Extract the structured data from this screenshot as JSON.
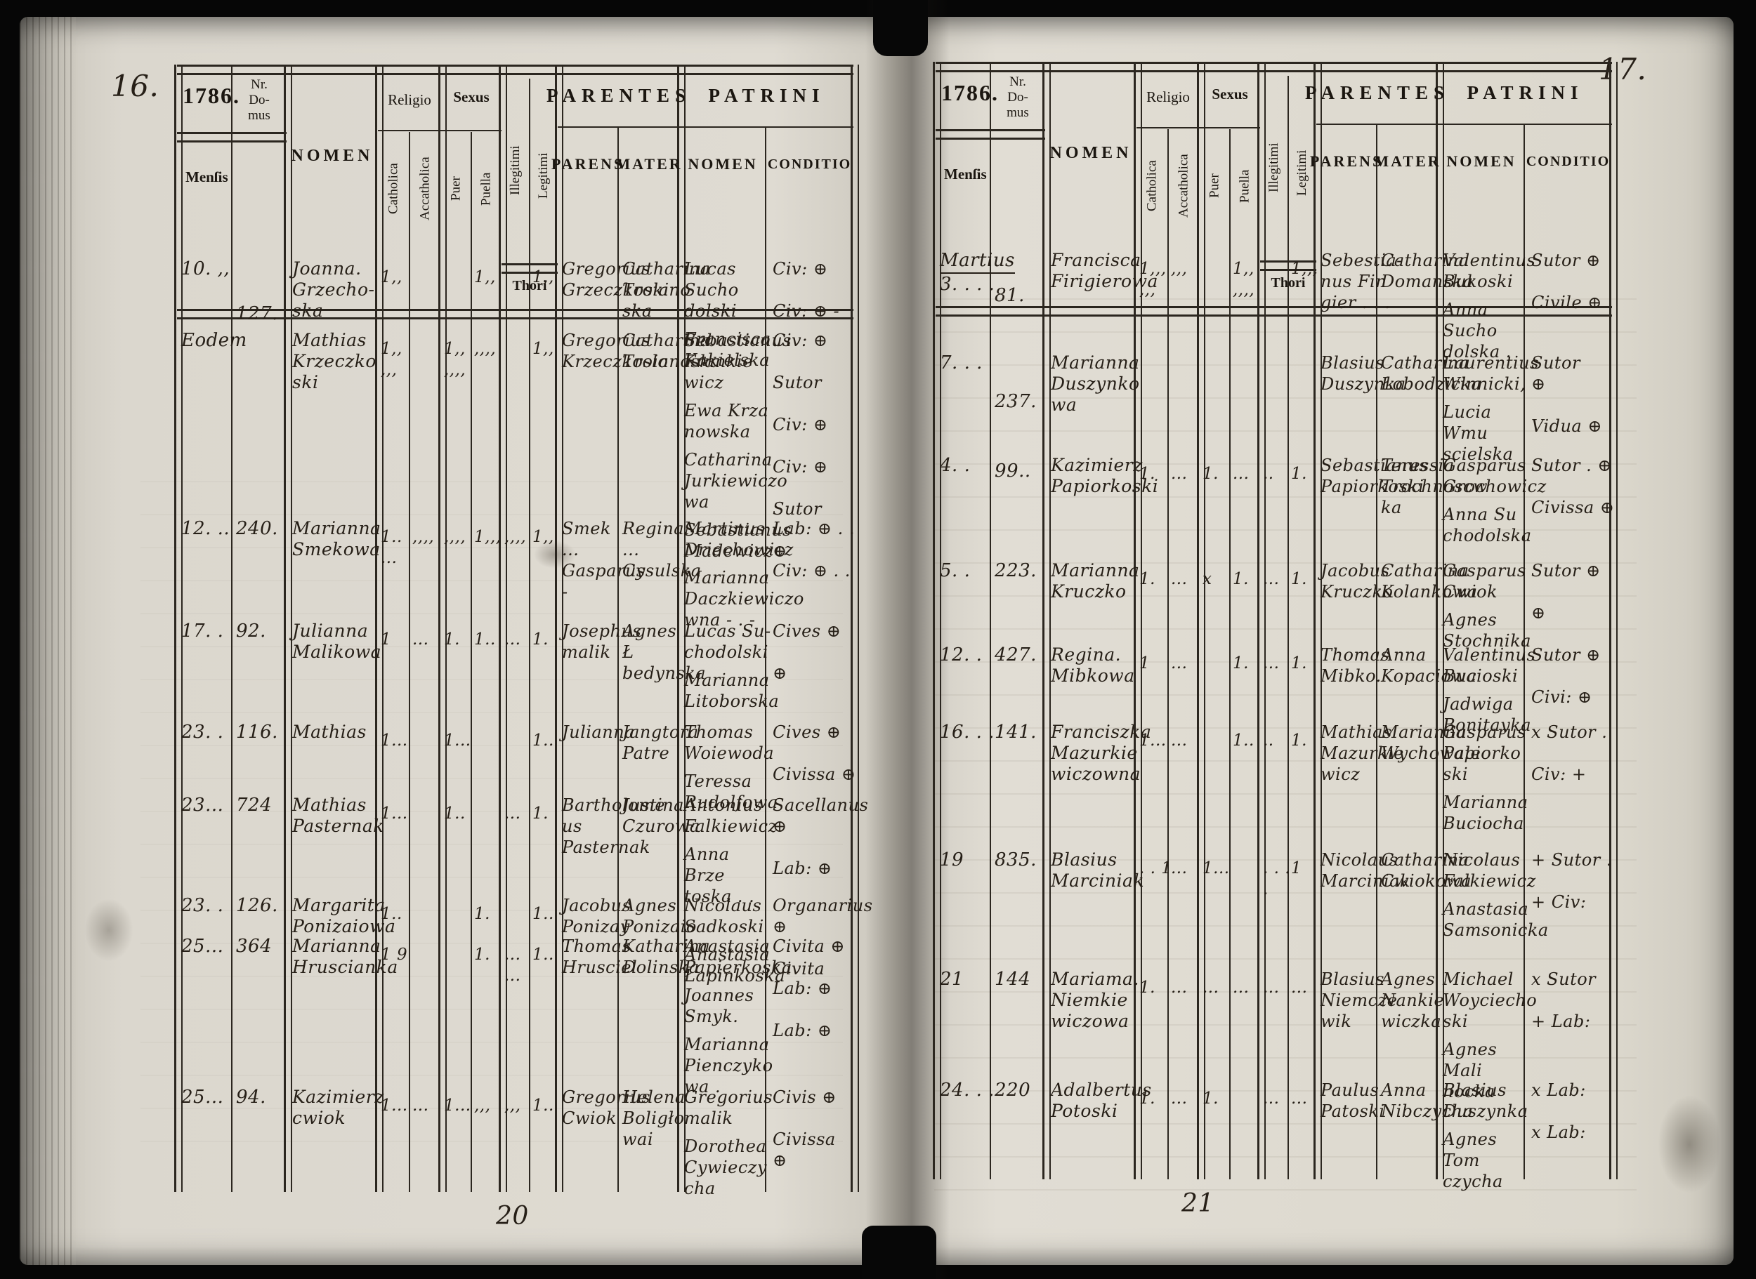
{
  "document": {
    "kind": "parish register scan",
    "year_label": "1786."
  },
  "headers": {
    "year": "1786.",
    "nr_domus": "Nr.\nDo-\nmus",
    "mensis": "Menſis",
    "nomen": "NOMEN",
    "religio": "Religio",
    "catholica": "Catholica",
    "acatholica": "Accatholica",
    "sexus": "Sexus",
    "puer": "Puer",
    "puella": "Puella",
    "illegitimi": "Illegitimi",
    "legitimi": "Legitimi",
    "thori": "Thori",
    "parentes": "PARENTES",
    "parens": "PARENS",
    "mater": "MATER",
    "patrini": "PATRINI",
    "patrini_nomen": "NOMEN",
    "conditio": "CONDITIO"
  },
  "pages": [
    {
      "id": "left",
      "corner": "16.",
      "page_number": "20",
      "rows": [
        {
          "mensis": "10. ,,",
          "nr": "",
          "nomen": "Joanna.\nGrzecho-\nska",
          "marks": {
            "catholica": "1,,",
            "acatholica": "",
            "puer": "",
            "puella": "1,,",
            "illegitimi": "",
            "legitimi": "1,,"
          },
          "parens": "Gregorius\nGrzeczkoski",
          "mater": "Catharina\nTroiano\nska",
          "patrini": [
            "Lucas Sucho\ndolski",
            "Francisca\nKakielska"
          ],
          "conditio": [
            "Civ: ⊕",
            "Civ: ⊕ -"
          ]
        },
        {
          "mensis": "Eodem",
          "nr": "127.",
          "nr_dy": -38,
          "nomen": "Mathias\nKrzeczko\nski",
          "marks": {
            "catholica": "1,, ,,,",
            "acatholica": "",
            "puer": "1,, ,,,,",
            "puella": ",,,,",
            "illegitimi": "",
            "legitimi": "1,,"
          },
          "parens": "Gregorius\nKrzeczkoslo",
          "mater": "Catharina\nTroianoska",
          "patrini": [
            "Sebastianus\nFrankie\nwicz",
            "Ewa Krza\nnowska",
            "Catharina\nJurkiewiczo\nwa",
            "Sebastianus\nMadewicz"
          ],
          "conditio": [
            "Civ: ⊕",
            "Sutor",
            "Civ: ⊕",
            "Civ: ⊕",
            "Sutor",
            "⊕"
          ]
        },
        {
          "mensis": "12. ..",
          "nr": "240.",
          "nomen": "Marianna\nSmekowa",
          "marks": {
            "catholica": "1.. ...",
            "acatholica": ",,,,",
            "puer": ",,,,",
            "puella": "1,,,",
            "illegitimi": ",,,,",
            "legitimi": "1,,"
          },
          "parens": "Smek ...\nGasparus -",
          "mater": "Regina ...\nCysulska",
          "patrini": [
            "Martinus\nDriechowicz",
            "Marianna\nDaczkiewiczo\nwna - . -"
          ],
          "conditio": [
            "Lab: ⊕ . .",
            "Civ: ⊕ . ."
          ]
        },
        {
          "mensis": "17. .",
          "nr": "92.",
          "nomen": "Julianna\nMalikowa",
          "marks": {
            "catholica": "1",
            "acatholica": "...",
            "puer": "1.",
            "puella": "1..",
            "illegitimi": "...",
            "legitimi": "1."
          },
          "parens": "Josephus\nmalik",
          "mater": "Agnes Ł\nbedynska",
          "patrini": [
            "Lucas Su-\nchodolski",
            "Marianna\nLitoborska"
          ],
          "conditio": [
            "Cives ⊕",
            "⊕"
          ]
        },
        {
          "mensis": "23. .",
          "nr": "116.",
          "nomen": "Mathias",
          "marks": {
            "catholica": "1...",
            "acatholica": "",
            "puer": "1...",
            "puella": "",
            "illegitimi": "",
            "legitimi": "1.."
          },
          "parens": "Julianna",
          "mater": "Jangtora\nPatre",
          "patrini": [
            "Thomas\nWoiewoda",
            "Teressa\nRudolfowa"
          ],
          "conditio": [
            "Cives ⊕",
            "Civissa ⊕"
          ]
        },
        {
          "mensis": "23...",
          "nr": "724",
          "nomen": "Mathias\nPasternak",
          "marks": {
            "catholica": "1...",
            "acatholica": "",
            "puer": "1..",
            "puella": "",
            "illegitimi": "...",
            "legitimi": "1."
          },
          "parens": "Bartholome\nus Pasternak",
          "mater": "Justina\nCzurowa",
          "patrini": [
            "Antonius\nFalkiewicz",
            "Anna Brze\ntoska . ."
          ],
          "conditio": [
            "Sacellanus ⊕",
            "Lab: ⊕"
          ]
        },
        {
          "mensis": "23. .",
          "nr": "126.",
          "nomen": "Margarita\nPonizaiowa",
          "marks": {
            "catholica": "1..",
            "acatholica": "",
            "puer": "",
            "puella": "1.",
            "illegitimi": "",
            "legitimi": "1.."
          },
          "parens": "Jacobus\nPonizay",
          "mater": "Agnes\nPonizaio",
          "patrini": [
            "Nicolaus\nSadkoski",
            "Anastasia\nŁapinkoska"
          ],
          "conditio": [
            "Organarius ⊕",
            "Civita"
          ]
        },
        {
          "mensis": "25...",
          "nr": "364",
          "nomen": "Marianna\nHruscianka",
          "marks": {
            "catholica": "1 9",
            "acatholica": "",
            "puer": "",
            "puella": "1.",
            "illegitimi": "... ...",
            "legitimi": "1.."
          },
          "parens": "Thomas\nHrusciel",
          "mater": "Katharina\nDolinska",
          "patrini": [
            "Anastasia\nPapierkoska",
            "Joannes\nSmyk.",
            "Marianna\nPienczyko\nwa ."
          ],
          "conditio": [
            "Civita ⊕",
            "Lab: ⊕",
            "Lab: ⊕"
          ]
        },
        {
          "mensis": "25...",
          "nr": "94.",
          "nomen": "Kazimierz\ncwiok",
          "marks": {
            "catholica": "1...",
            "acatholica": "...",
            "puer": "1...",
            "puella": ",,,",
            "illegitimi": ",,,",
            "legitimi": "1.."
          },
          "parens": "Gregorius\nCwiok",
          "mater": "Helena\nBoligło\nwai",
          "patrini": [
            "Gregorius\nmalik",
            "Dorothea\nCywieczy\ncha"
          ],
          "conditio": [
            "Civis ⊕",
            "Civissa\n⊕"
          ]
        }
      ]
    },
    {
      "id": "right",
      "corner": "17.",
      "page_number": "21",
      "rows": [
        {
          "mensis": "Martius\n3. . . .",
          "mensis_underline": true,
          "nr": "81.",
          "nr_dy": 50,
          "nomen": "Francisca\nFirigierowa",
          "marks": {
            "catholica": "1,,, ,,,",
            "acatholica": ",,,",
            "puer": "",
            "puella": "1,, ,,,,",
            "illegitimi": "",
            "legitimi": "1,,,"
          },
          "parens": "Sebestia-\nnus Fin\ngier . . .",
          "mater": "Catharina\nDomanska",
          "patrini": [
            "Valentinus\nBukoski",
            "Anna Sucho\ndolska ."
          ],
          "conditio": [
            "Sutor ⊕",
            "Civile ⊕"
          ]
        },
        {
          "mensis": "7. . .",
          "nr": "237.",
          "nr_dy": 55,
          "nomen": "Marianna\nDuszynko\nwa",
          "marks": {
            "catholica": "",
            "acatholica": "",
            "puer": "",
            "puella": "",
            "illegitimi": "",
            "legitimi": ""
          },
          "parens": "Blasius\nDuszynka",
          "mater": "Catharina\nŁobodzicka",
          "patrini": [
            "Laurentius\nWinnicki,",
            "Lucia Wmu\nscielska"
          ],
          "conditio": [
            "Sutor\n⊕",
            "Vidua ⊕"
          ]
        },
        {
          "mensis": "4. .",
          "nr": "99..",
          "nr_dy": 8,
          "nomen": "Kazimierz\nPapiorkoski",
          "marks": {
            "catholica": "1.",
            "acatholica": "...",
            "puer": "1.",
            "puella": "...",
            "illegitimi": "..",
            "legitimi": "1."
          },
          "parens": "Sebastianus\nPapiorkoski",
          "mater": "Teressia\nTrochnoscw\nka",
          "patrini": [
            "Gasparus\nGrochowicz",
            "Anna Su\nchodolska"
          ],
          "conditio": [
            "Sutor . ⊕",
            "Civissa ⊕"
          ]
        },
        {
          "mensis": "5. .",
          "nr": "223.",
          "nomen": "Marianna\nKruczko",
          "marks": {
            "catholica": "1.",
            "acatholica": "...",
            "puer": "x",
            "puella": "1.",
            "illegitimi": "...",
            "legitimi": "1."
          },
          "parens": "Jacobus\nKruczko",
          "mater": "Catharina\nKolankowa",
          "patrini": [
            "Gasparus\nCwiok",
            "Agnes\nStochnika"
          ],
          "conditio": [
            "Sutor ⊕",
            "⊕"
          ]
        },
        {
          "mensis": "12. .",
          "nr": "427.",
          "nomen": "Regina.\nMibkowa",
          "marks": {
            "catholica": "1",
            "acatholica": "...",
            "puer": "",
            "puella": "1.",
            "illegitimi": "...",
            "legitimi": "1."
          },
          "parens": "Thomas\nMibko.",
          "mater": "Anna\nKopaciowa",
          "patrini": [
            "Valentinus\nBucioski",
            "Jadwiga\nBonitayka"
          ],
          "conditio": [
            "Sutor ⊕",
            "Civi: ⊕"
          ]
        },
        {
          "mensis": "16. . .",
          "nr": "141.",
          "nomen": "Franciszka\nMazurkie\nwiczowna",
          "marks": {
            "catholica": "1...",
            "acatholica": "...",
            "puer": "",
            "puella": "1..",
            "illegitimi": "..",
            "legitimi": "1."
          },
          "parens": "Mathias\nMazurkie\nwicz",
          "mater": "Marianna\nWychowalec",
          "patrini": [
            "Gasparus\nPapiorko\nski",
            "Marianna\nBuciocha"
          ],
          "conditio": [
            "x Sutor .",
            "Civ: +"
          ]
        },
        {
          "mensis": "19",
          "nr": "835.",
          "nomen": "Blasius\nMarciniak",
          "marks": {
            "catholica": ". . 1",
            "acatholica": "...",
            "puer": "1...",
            "puella": "",
            "illegitimi": ". . . .",
            "legitimi": "1"
          },
          "parens": "Nicolaus\nMarciniak",
          "mater": "Catharina\nCwiokowa",
          "patrini": [
            "Nicolaus\nFalkiewicz",
            "Anastasia\nSamsonicka"
          ],
          "conditio": [
            "+ Sutor .",
            "+ Civ:"
          ]
        },
        {
          "mensis": "21",
          "nr": "144",
          "nomen": "Mariama.\nNiemkie\nwiczowa",
          "marks": {
            "catholica": "1.",
            "acatholica": "...",
            "puer": "...",
            "puella": "...",
            "illegitimi": "...",
            "legitimi": "..."
          },
          "parens": "Blasius\nNiemcze\nwik",
          "mater": "Agnes\nNankie\nwiczka",
          "patrini": [
            "Michael\nWoyciecho\nski",
            "Agnes Mali\nnocka"
          ],
          "conditio": [
            "x Sutor",
            "+ Lab:"
          ]
        },
        {
          "mensis": "24. . .",
          "nr": "220",
          "nomen": "Adalbertus\nPotoski",
          "marks": {
            "catholica": "1.",
            "acatholica": "...",
            "puer": "1.",
            "puella": "",
            "illegitimi": "...",
            "legitimi": "..."
          },
          "parens": "Paulus\nPatoski",
          "mater": "Anna\nNibczycha",
          "patrini": [
            "Blasius\nDuszynka",
            "Agnes Tom\nczycha"
          ],
          "conditio": [
            "x Lab:",
            "x Lab:"
          ]
        }
      ]
    }
  ]
}
